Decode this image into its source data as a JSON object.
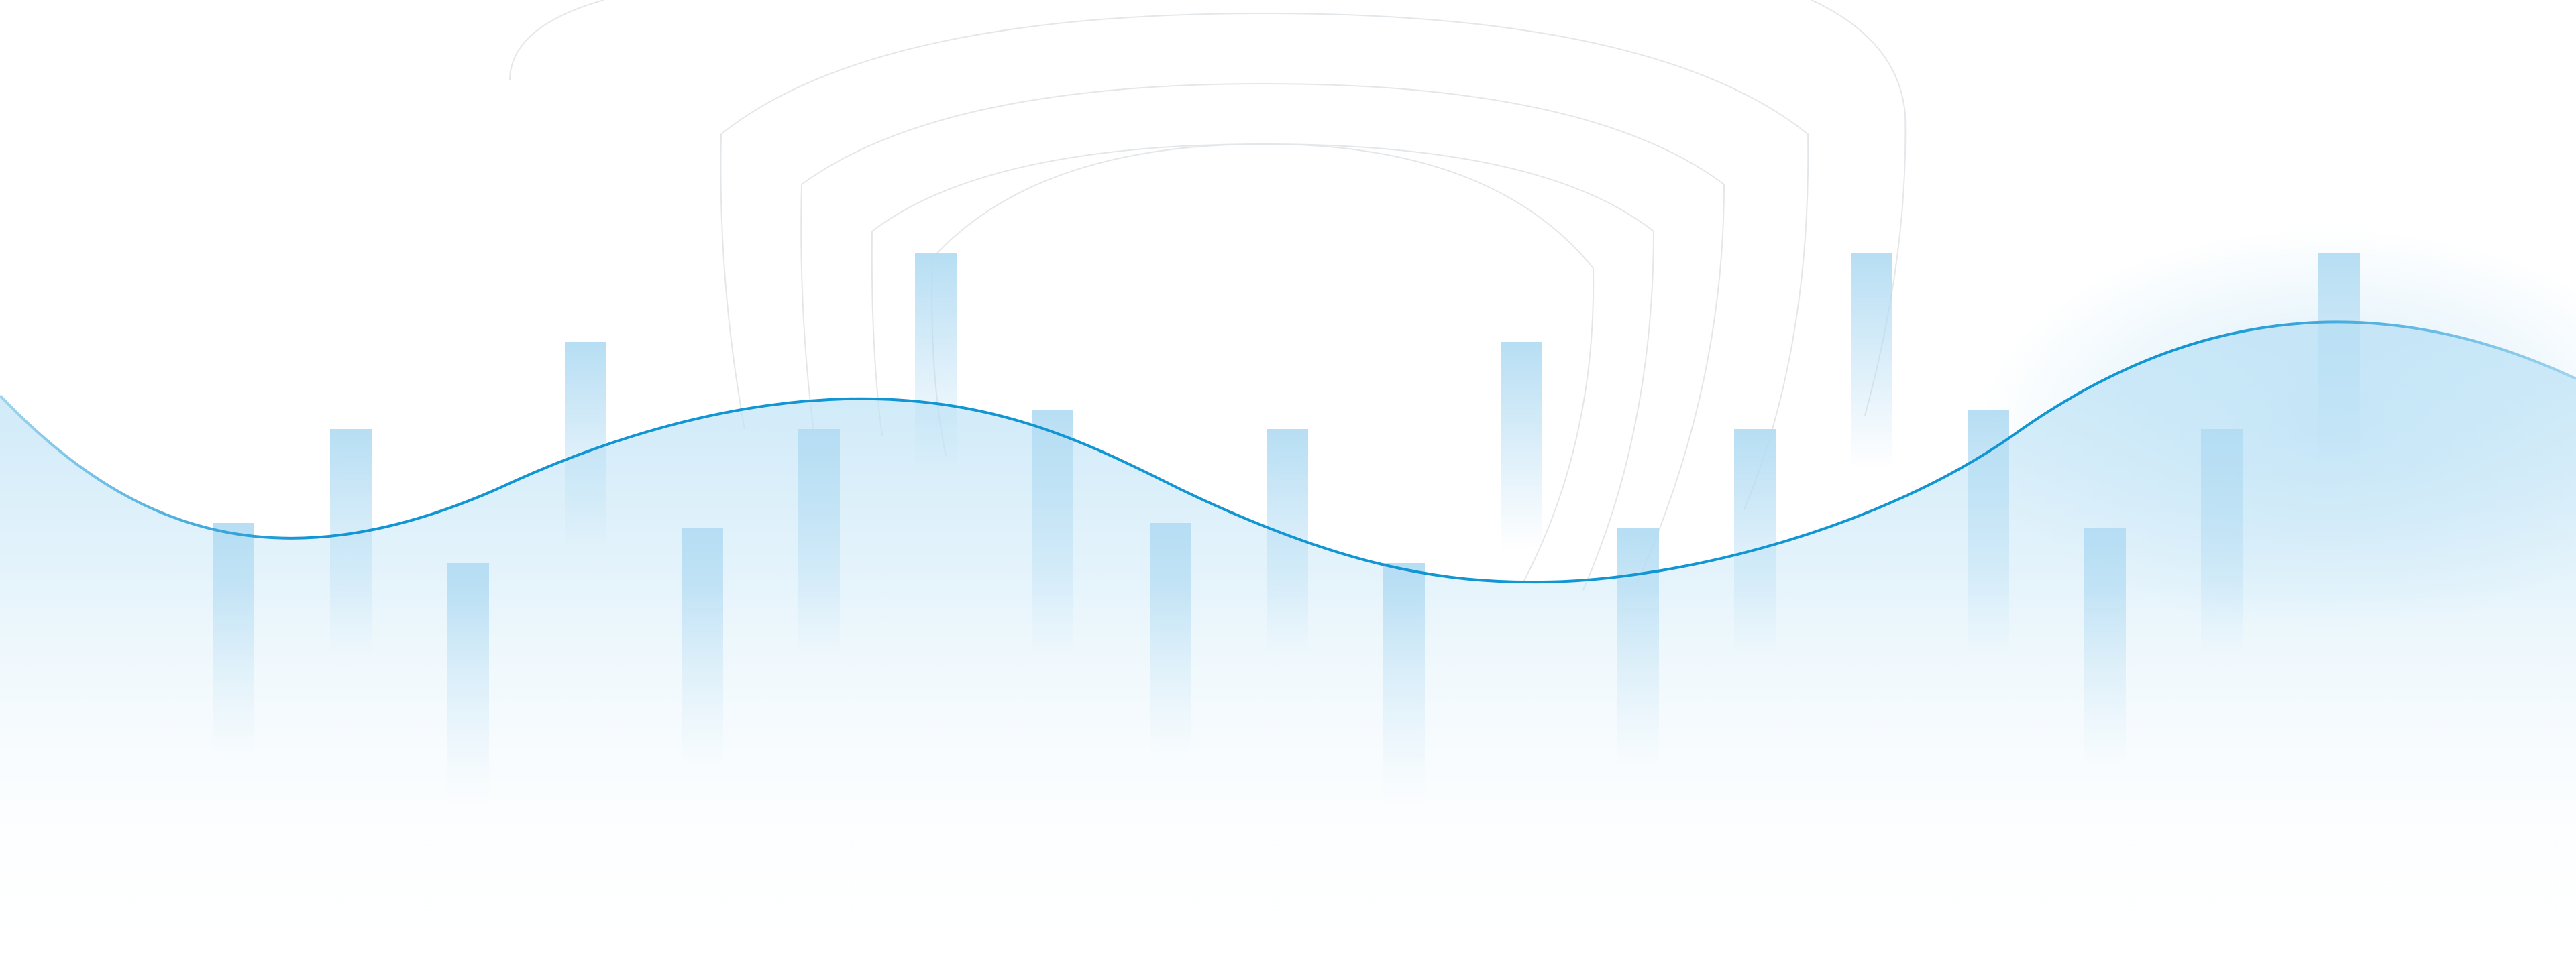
{
  "background": {
    "base_color": "#ffffff",
    "accent_color": "#0b8fd0",
    "fill_color": "#bfe3f6",
    "arch_color": "#cfd4d8",
    "wave_stroke": "#1295d3",
    "wave_stroke_faint": "#9fd3ee",
    "bar_color": "#b3dcf3",
    "decorative_motif": "arch-lines-bars-and-wave"
  }
}
